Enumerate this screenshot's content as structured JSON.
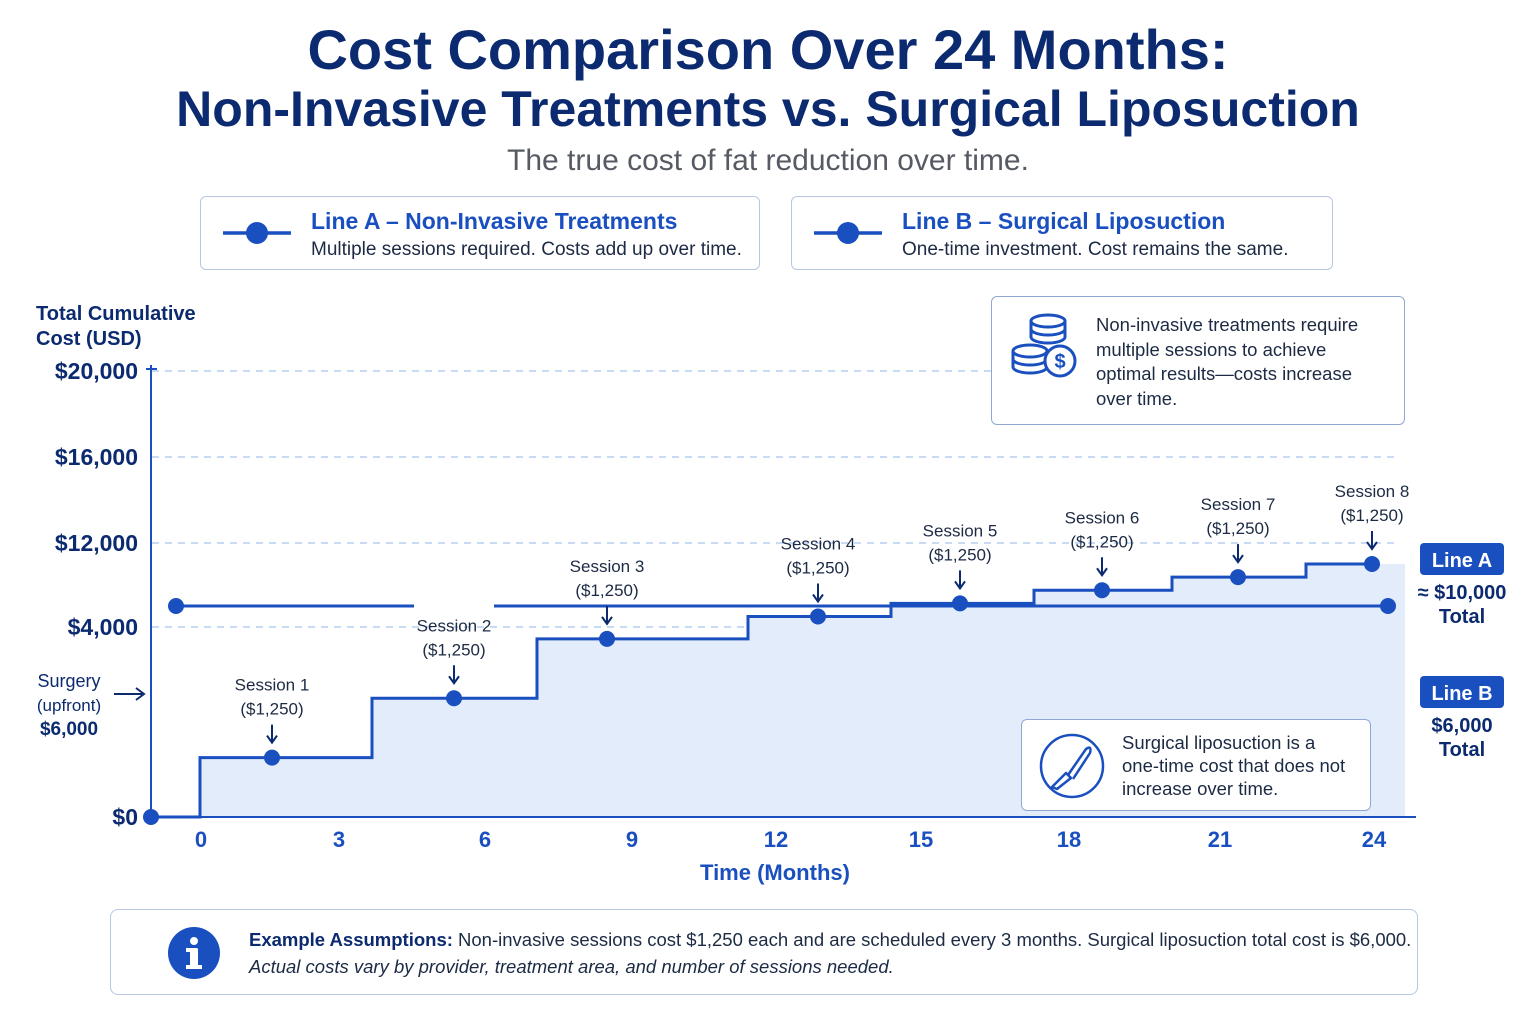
{
  "header": {
    "title_line1": "Cost Comparison Over 24 Months:",
    "title_line2": "Non-Invasive Treatments vs. Surgical Liposuction",
    "subtitle": "The true cost of fat reduction over time."
  },
  "legend": [
    {
      "title": "Line A – Non-Invasive Treatments",
      "desc": "Multiple sessions required. Costs add up over time."
    },
    {
      "title": "Line B – Surgical Liposuction",
      "desc": "One-time investment. Cost remains the same."
    }
  ],
  "notes": {
    "coins_icon": "coins-dollar-icon",
    "top_note": [
      "Non-invasive treatments require",
      "multiple sessions to achieve",
      "optimal results—costs increase",
      "over time."
    ],
    "scalpel_icon": "scalpel-icon",
    "bottom_note": [
      "Surgical liposuction is a",
      "one-time cost that does not",
      "increase over time."
    ]
  },
  "footer": {
    "info_icon": "info-icon",
    "bold": "Example Assumptions:",
    "line1": "Non-invasive sessions cost $1,250 each and are scheduled every 3 months. Surgical liposuction total cost is $6,000.",
    "line2": "Actual costs vary by provider, treatment area, and number of sessions needed."
  },
  "colors": {
    "primary": "#1a4fc0",
    "dark": "#0b2a6f",
    "fill": "#e3ecfb",
    "grid": "#a9c4ee"
  },
  "chart_data": {
    "type": "line",
    "title": "",
    "ylabel": "Total Cumulative Cost (USD)",
    "xlabel": "Time (Months)",
    "x_ticks": [
      0,
      3,
      6,
      9,
      12,
      15,
      18,
      21,
      24
    ],
    "y_ticks": [
      "$0",
      "$4,000",
      "$12,000",
      "$16,000",
      "$20,000"
    ],
    "grid": true,
    "series": [
      {
        "name": "Line A",
        "step": true,
        "points": [
          {
            "x": 0,
            "y": 0
          },
          {
            "x": 1.5,
            "y": 1250,
            "label": "Session 1",
            "sublabel": "($1,250)"
          },
          {
            "x": 5.1,
            "y": 2500,
            "label": "Session 2",
            "sublabel": "($1,250)"
          },
          {
            "x": 8.1,
            "y": 3750,
            "label": "Session 3",
            "sublabel": "($1,250)"
          },
          {
            "x": 12.9,
            "y": 5000,
            "label": "Session 4",
            "sublabel": "($1,250)"
          },
          {
            "x": 15.8,
            "y": 6250,
            "label": "Session 5",
            "sublabel": "($1,250)"
          },
          {
            "x": 18.7,
            "y": 7500,
            "label": "Session 6",
            "sublabel": "($1,250)"
          },
          {
            "x": 21.5,
            "y": 8750,
            "label": "Session 7",
            "sublabel": "($1,250)"
          },
          {
            "x": 24,
            "y": 10000,
            "label": "Session 8",
            "sublabel": "($1,250)"
          }
        ],
        "end_label": "Line A",
        "end_value": "≈ $10,000",
        "end_unit": "Total"
      },
      {
        "name": "Line B",
        "points": [
          {
            "x": -0.5,
            "y": 6000
          },
          {
            "x": 24,
            "y": 6000
          }
        ],
        "end_label": "Line B",
        "end_value": "$6,000",
        "end_unit": "Total",
        "start_label": [
          "Surgery",
          "(upfront)",
          "$6,000"
        ]
      }
    ]
  }
}
